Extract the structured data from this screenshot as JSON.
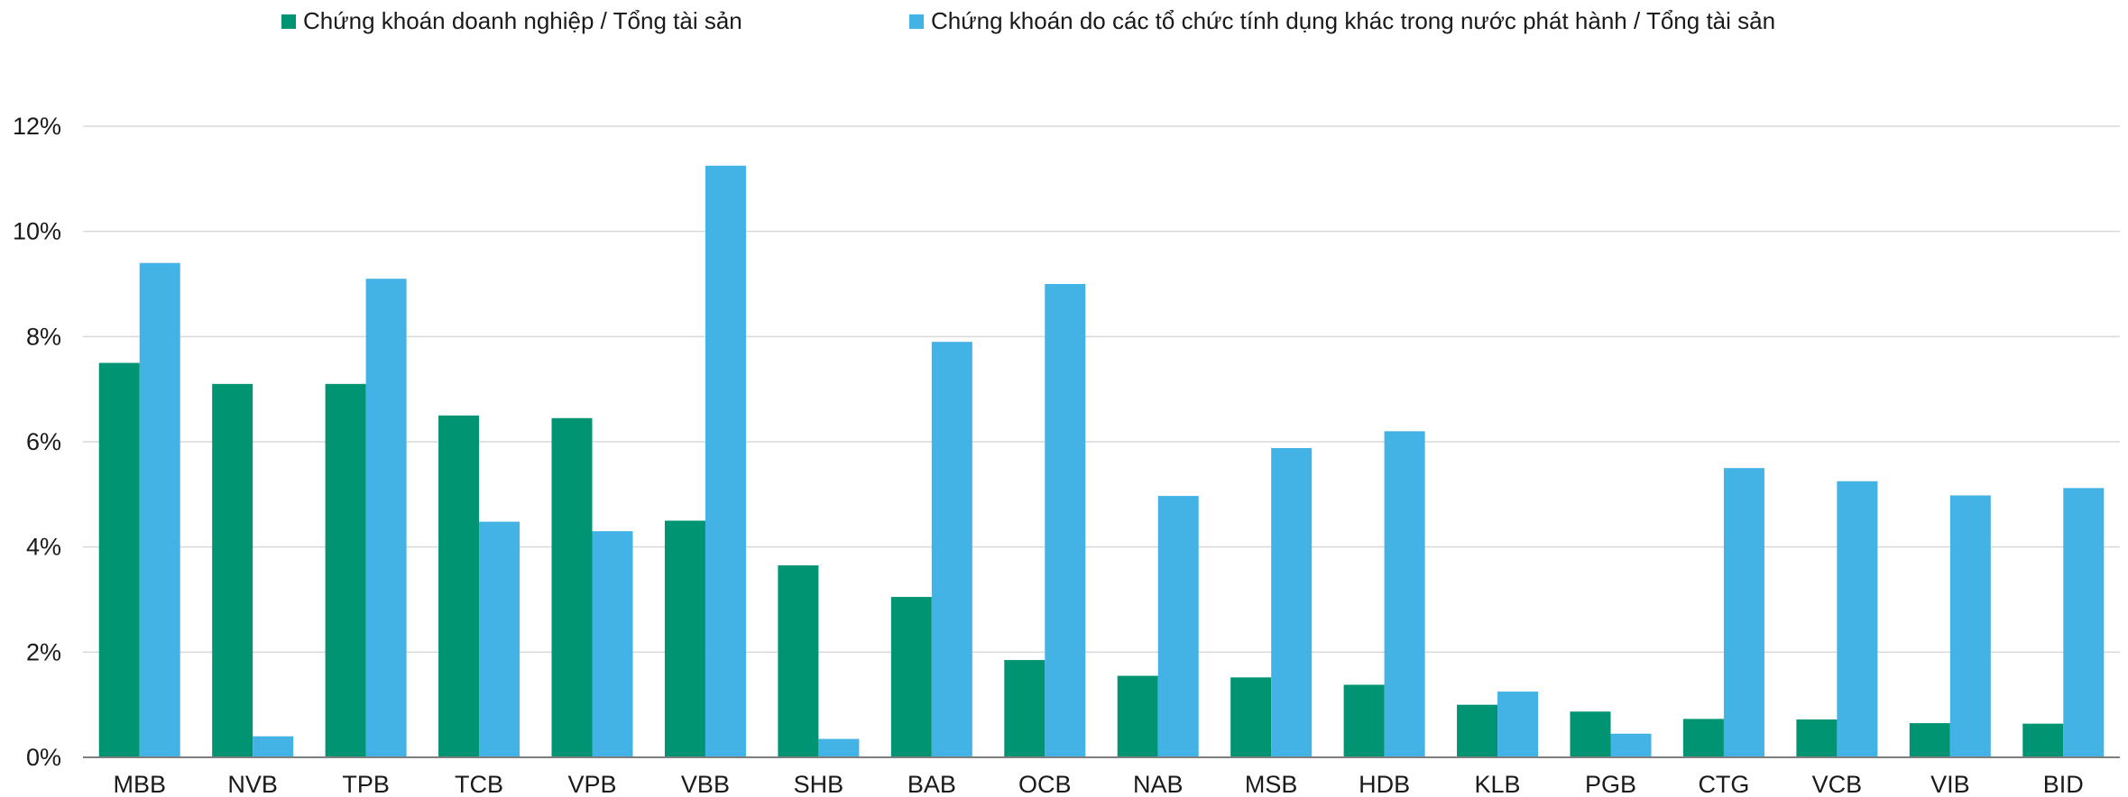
{
  "legend": {
    "series1": "Chứng khoán doanh nghiệp / Tổng tài sản",
    "series2": "Chứng khoán do các tổ chức tính dụng khác trong nước phát hành / Tổng tài sản"
  },
  "colors": {
    "series1": "#009473",
    "series2": "#43B3E5",
    "grid": "#D9D9D9",
    "axis": "#7F7F7F"
  },
  "chart_data": {
    "type": "bar",
    "title": "",
    "xlabel": "",
    "ylabel": "",
    "ylim": [
      0,
      12
    ],
    "y_ticks": [
      "0%",
      "2%",
      "4%",
      "6%",
      "8%",
      "10%",
      "12%"
    ],
    "grid": true,
    "legend_position": "top",
    "categories": [
      "MBB",
      "NVB",
      "TPB",
      "TCB",
      "VPB",
      "VBB",
      "SHB",
      "BAB",
      "OCB",
      "NAB",
      "MSB",
      "HDB",
      "KLB",
      "PGB",
      "CTG",
      "VCB",
      "VIB",
      "BID"
    ],
    "series": [
      {
        "name": "Chứng khoán doanh nghiệp / Tổng tài sản",
        "values": [
          7.5,
          7.1,
          7.1,
          6.5,
          6.45,
          4.5,
          3.65,
          3.05,
          1.85,
          1.55,
          1.52,
          1.38,
          1.0,
          0.87,
          0.73,
          0.72,
          0.65,
          0.64
        ]
      },
      {
        "name": "Chứng khoán do các tổ chức tính dụng khác trong nước phát hành / Tổng tài sản",
        "values": [
          9.4,
          0.4,
          9.1,
          4.48,
          4.3,
          11.25,
          0.35,
          7.9,
          9.0,
          4.97,
          5.88,
          6.2,
          1.25,
          0.45,
          5.5,
          5.25,
          4.98,
          5.12
        ]
      }
    ]
  }
}
